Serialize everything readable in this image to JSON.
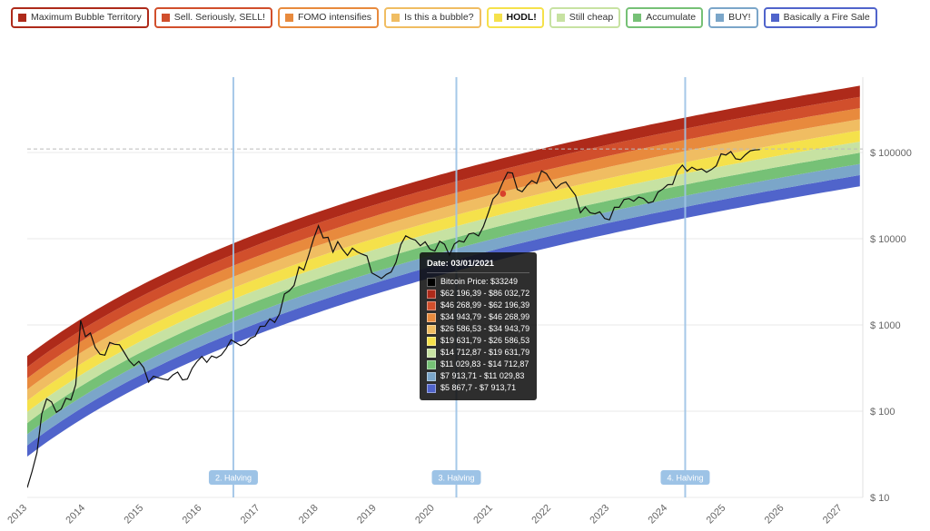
{
  "page": {
    "background": "#ffffff"
  },
  "legend": {
    "items": [
      {
        "label": "Maximum Bubble Territory",
        "color": "#ae2a1a",
        "bold": false
      },
      {
        "label": "Sell. Seriously, SELL!",
        "color": "#d14f2c",
        "bold": false
      },
      {
        "label": "FOMO intensifies",
        "color": "#e88a3d",
        "bold": false
      },
      {
        "label": "Is this a bubble?",
        "color": "#f0bd62",
        "bold": false
      },
      {
        "label": "HODL!",
        "color": "#f5e14b",
        "bold": true
      },
      {
        "label": "Still cheap",
        "color": "#c7e2a2",
        "bold": false
      },
      {
        "label": "Accumulate",
        "color": "#76c176",
        "bold": false
      },
      {
        "label": "BUY!",
        "color": "#7ba6c9",
        "bold": false
      },
      {
        "label": "Basically a Fire Sale",
        "color": "#5064cb",
        "bold": false
      }
    ]
  },
  "tooltip": {
    "title": "Date: 03/01/2021",
    "rows": [
      {
        "color": "#000000",
        "text": "Bitcoin Price: $33249"
      },
      {
        "color": "#ae2a1a",
        "text": "$62 196,39 - $86 032,72"
      },
      {
        "color": "#d14f2c",
        "text": "$46 268,99 - $62 196,39"
      },
      {
        "color": "#e88a3d",
        "text": "$34 943,79 - $46 268,99"
      },
      {
        "color": "#f0bd62",
        "text": "$26 586,53 - $34 943,79"
      },
      {
        "color": "#f5e14b",
        "text": "$19 631,79 - $26 586,53"
      },
      {
        "color": "#c7e2a2",
        "text": "$14 712,87 - $19 631,79"
      },
      {
        "color": "#76c176",
        "text": "$11 029,83 - $14 712,87"
      },
      {
        "color": "#7ba6c9",
        "text": "$7 913,71 - $11 029,83"
      },
      {
        "color": "#5064cb",
        "text": "$5 867,7 - $7 913,71"
      }
    ]
  },
  "chart_data": {
    "type": "line",
    "title": "",
    "xlabel": "",
    "ylabel": "",
    "scale": "log",
    "xlim": [
      2013,
      2027.35
    ],
    "ylim": [
      10,
      740000
    ],
    "x_start": 2013.0,
    "x_step_years": 0.0833333,
    "series": [
      {
        "name": "Bitcoin Price",
        "color": "#111111",
        "values": [
          13,
          20,
          33,
          93,
          139,
          128,
          97,
          106,
          141,
          135,
          204,
          1130,
          732,
          806,
          550,
          458,
          446,
          627,
          597,
          589,
          478,
          386,
          338,
          378,
          320,
          217,
          254,
          244,
          236,
          230,
          263,
          284,
          230,
          236,
          314,
          377,
          430,
          368,
          437,
          416,
          448,
          531,
          673,
          624,
          575,
          609,
          700,
          742,
          963,
          970,
          1179,
          1071,
          1347,
          2286,
          2480,
          2875,
          4703,
          4338,
          6468,
          9916,
          14156,
          10221,
          10397,
          6973,
          9240,
          7494,
          6404,
          7780,
          7037,
          6625,
          6317,
          4017,
          3742,
          3457,
          3854,
          4105,
          5320,
          8574,
          10817,
          10085,
          9630,
          8293,
          9199,
          7569,
          7193,
          9350,
          8599,
          6438,
          8658,
          9461,
          9137,
          11351,
          11655,
          10784,
          13797,
          19698,
          28996,
          33114,
          45240,
          58800,
          57750,
          37332,
          35041,
          41626,
          47166,
          43791,
          61320,
          56905,
          46217,
          38483,
          43193,
          45539,
          37714,
          31792,
          19985,
          23307,
          20050,
          19432,
          20490,
          17168,
          16548,
          23139,
          23147,
          28478,
          29268,
          27219,
          30477,
          29230,
          25932,
          26962,
          34668,
          37718,
          42265,
          42580,
          61198,
          71333,
          60636,
          67491,
          62678,
          64619,
          58969,
          63329,
          70215,
          96449,
          93429,
          102405,
          84373,
          82548,
          94207,
          104598,
          107135,
          108000
        ]
      }
    ],
    "yticks": [
      {
        "value": 100000,
        "label": "$ 100000"
      },
      {
        "value": 10000,
        "label": "$ 10000"
      },
      {
        "value": 1000,
        "label": "$ 1000"
      },
      {
        "value": 100,
        "label": "$ 100"
      },
      {
        "value": 10,
        "label": "$ 10"
      }
    ],
    "xticks": [
      "2013",
      "2014",
      "2015",
      "2016",
      "2017",
      "2018",
      "2019",
      "2020",
      "2021",
      "2022",
      "2023",
      "2024",
      "2025",
      "2026",
      "2027"
    ],
    "dashed_line_value": 110000,
    "halvings": [
      {
        "label": "2. Halving",
        "year": 2016.54
      },
      {
        "label": "3. Halving",
        "year": 2020.37
      },
      {
        "label": "4. Halving",
        "year": 2024.3
      }
    ],
    "halving_color": "#9dc3e6",
    "marker": {
      "year": 2021.17,
      "price": 33249,
      "color": "#d8402c"
    },
    "bands": {
      "names_bottom_to_top": [
        "Basically a Fire Sale",
        "BUY!",
        "Accumulate",
        "Still cheap",
        "HODL!",
        "Is this a bubble?",
        "FOMO intensifies",
        "Sell. Seriously, SELL!",
        "Maximum Bubble Territory"
      ],
      "colors_bottom_to_top": [
        "#5064cb",
        "#7ba6c9",
        "#76c176",
        "#c7e2a2",
        "#f5e14b",
        "#f0bd62",
        "#e88a3d",
        "#d14f2c",
        "#ae2a1a"
      ],
      "edge_values_on_2021_03_01": [
        5867.7,
        7913.71,
        11029.83,
        14712.87,
        19631.79,
        26586.53,
        34943.79,
        46268.99,
        62196.39,
        86032.72
      ],
      "regression": {
        "slope": 4.746,
        "intercept": -12.961,
        "origin_year": 2009.0,
        "days_per_year": 365,
        "band_log10_width": 0.1296
      }
    }
  }
}
